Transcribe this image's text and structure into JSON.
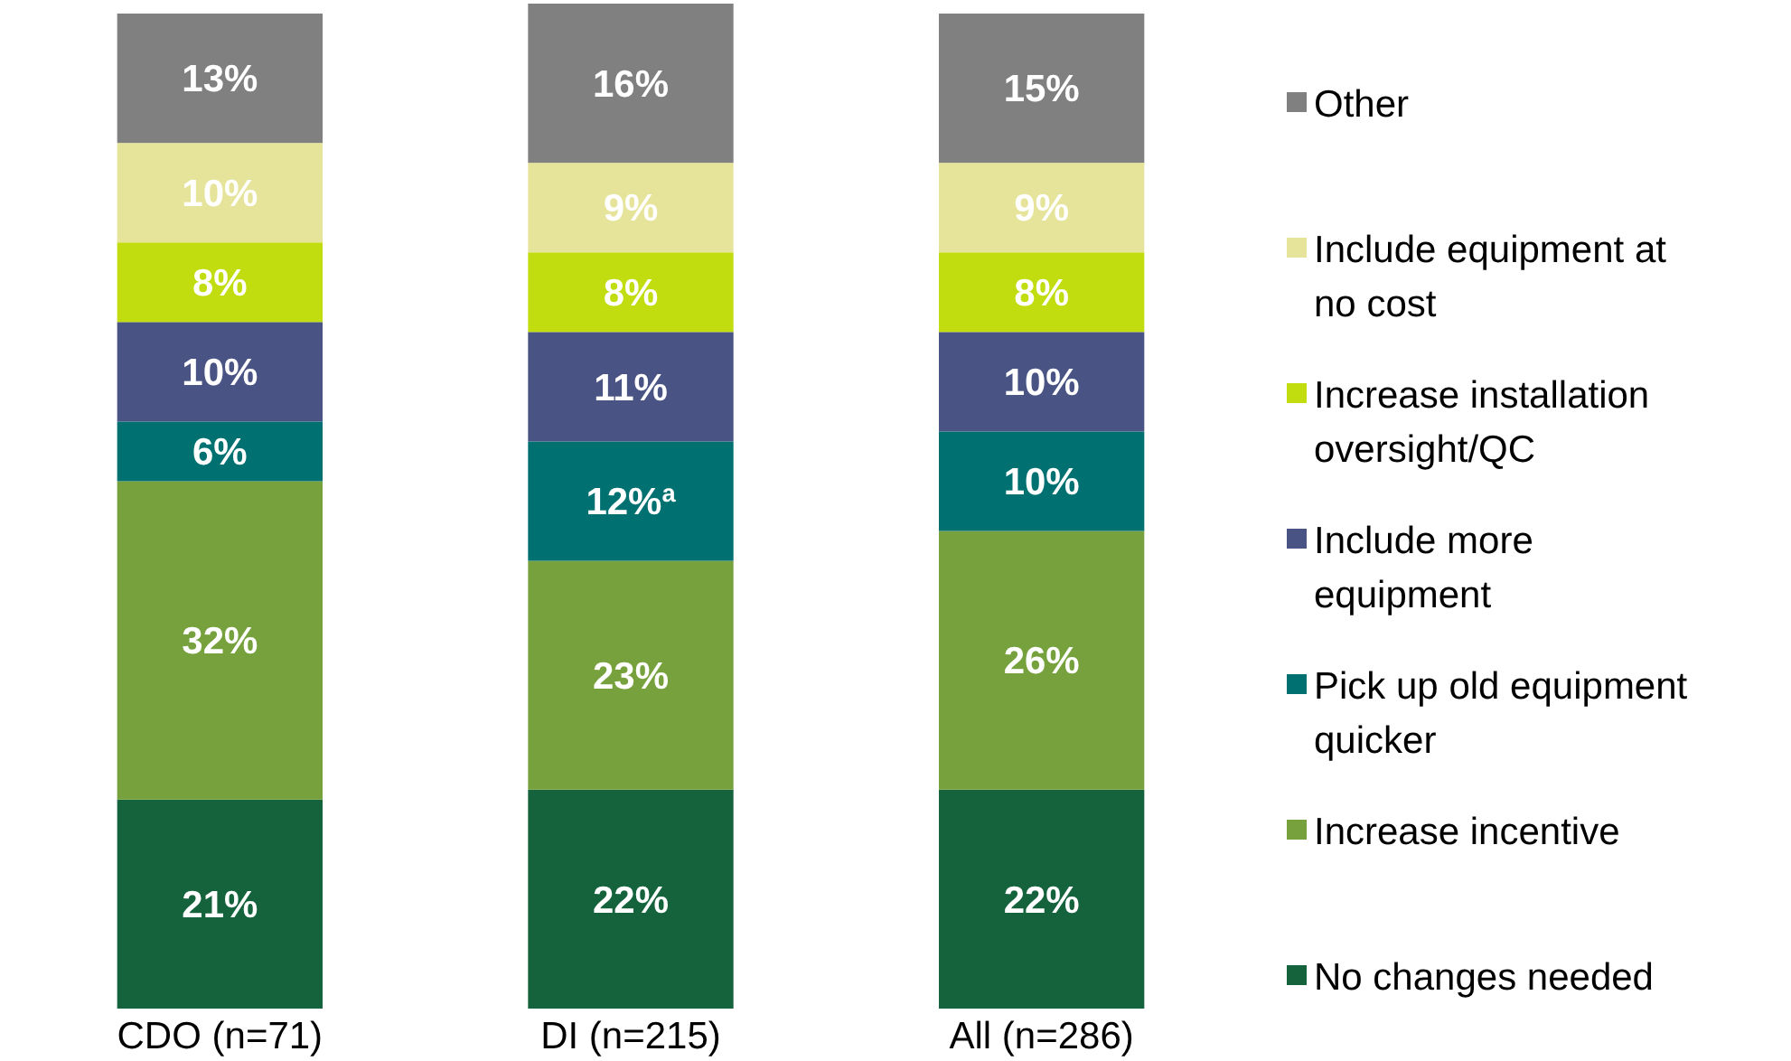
{
  "chart_data": {
    "type": "bar",
    "stacked": true,
    "legend": "right",
    "categories": [
      "CDO (n=71)",
      "DI (n=215)",
      "All (n=286)"
    ],
    "series": [
      {
        "name": "No changes needed",
        "color": "#14633c",
        "values": [
          21,
          22,
          22
        ],
        "value_labels": [
          "21%",
          "22%",
          "22%"
        ]
      },
      {
        "name": "Increase incentive",
        "color": "#76a13c",
        "values": [
          32,
          23,
          26
        ],
        "value_labels": [
          "32%",
          "23%",
          "26%"
        ]
      },
      {
        "name": "Pick up old equipment quicker",
        "color": "#007070",
        "values": [
          6,
          12,
          10
        ],
        "value_labels": [
          "6%",
          "12%$^{a}$",
          "10%"
        ]
      },
      {
        "name": "Include more equipment",
        "color": "#4a5484",
        "values": [
          10,
          11,
          10
        ],
        "value_labels": [
          "10%",
          "11%",
          "10%"
        ]
      },
      {
        "name": "Increase installation oversight/QC",
        "color": "#c2dd0f",
        "values": [
          8,
          8,
          8
        ],
        "value_labels": [
          "8%",
          "8%",
          "8%"
        ]
      },
      {
        "name": "Include equipment at no cost",
        "color": "#e6e49a",
        "values": [
          10,
          9,
          9
        ],
        "value_labels": [
          "10%",
          "9%",
          "9%"
        ]
      },
      {
        "name": "Other",
        "color": "#808080",
        "values": [
          13,
          16,
          15
        ],
        "value_labels": [
          "13%",
          "16%",
          "15%"
        ]
      }
    ]
  }
}
